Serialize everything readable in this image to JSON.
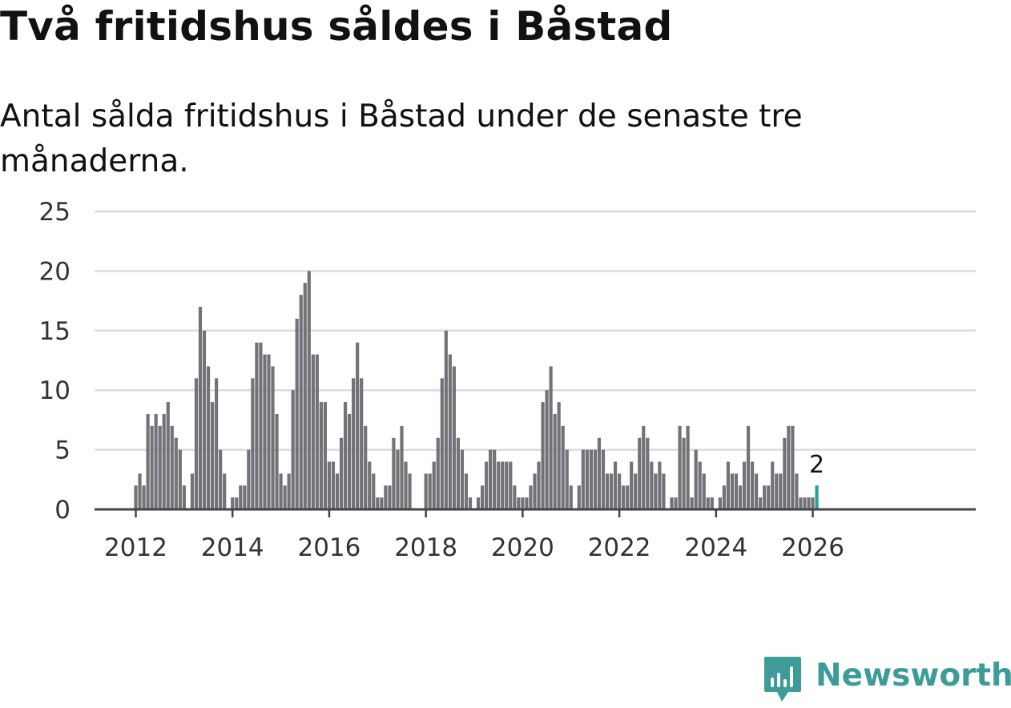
{
  "header": {
    "title": "Två fritidshus såldes i Båstad",
    "subtitle": "Antal sålda fritidshus i Båstad under de senaste tre månaderna."
  },
  "brand": {
    "name": "Newsworthy",
    "icon": "newsworthy-chart-icon"
  },
  "colors": {
    "bar": "#737278",
    "highlight": "#2a9d99",
    "grid": "#dcdcdc",
    "axis": "#444444",
    "text": "#333333",
    "brand": "#3d9c98"
  },
  "chart_data": {
    "type": "bar",
    "title": "Två fritidshus såldes i Båstad",
    "subtitle": "Antal sålda fritidshus i Båstad under de senaste tre månaderna.",
    "xlabel": "",
    "ylabel": "",
    "ylim": [
      0,
      25
    ],
    "yticks": [
      0,
      5,
      10,
      15,
      20,
      25
    ],
    "xticks": [
      "2012",
      "2014",
      "2016",
      "2018",
      "2020",
      "2022",
      "2024",
      "2026"
    ],
    "x_start": "2012-01",
    "grid": true,
    "highlight_label": "2",
    "series": [
      {
        "name": "Antal sålda fritidshus",
        "values": [
          2,
          3,
          2,
          8,
          7,
          8,
          7,
          8,
          9,
          7,
          6,
          5,
          2,
          0,
          3,
          11,
          17,
          15,
          12,
          9,
          11,
          5,
          3,
          0,
          1,
          1,
          2,
          2,
          5,
          11,
          14,
          14,
          13,
          13,
          12,
          8,
          3,
          2,
          3,
          10,
          16,
          18,
          19,
          20,
          13,
          13,
          9,
          9,
          4,
          4,
          3,
          6,
          9,
          8,
          11,
          14,
          11,
          7,
          4,
          3,
          1,
          1,
          2,
          2,
          6,
          5,
          7,
          4,
          3,
          0,
          0,
          0,
          3,
          3,
          4,
          6,
          11,
          15,
          13,
          12,
          6,
          5,
          3,
          1,
          0,
          1,
          2,
          4,
          5,
          5,
          4,
          4,
          4,
          4,
          2,
          1,
          1,
          1,
          2,
          3,
          4,
          9,
          10,
          12,
          8,
          9,
          7,
          5,
          2,
          0,
          2,
          5,
          5,
          5,
          5,
          6,
          5,
          3,
          3,
          4,
          3,
          2,
          2,
          4,
          3,
          6,
          7,
          6,
          4,
          3,
          4,
          3,
          0,
          1,
          1,
          7,
          6,
          7,
          1,
          5,
          4,
          3,
          1,
          1,
          0,
          1,
          2,
          4,
          3,
          3,
          2,
          4,
          7,
          4,
          3,
          1,
          2,
          2,
          4,
          3,
          3,
          6,
          7,
          7,
          3,
          1,
          1,
          1,
          1,
          2
        ]
      }
    ]
  }
}
